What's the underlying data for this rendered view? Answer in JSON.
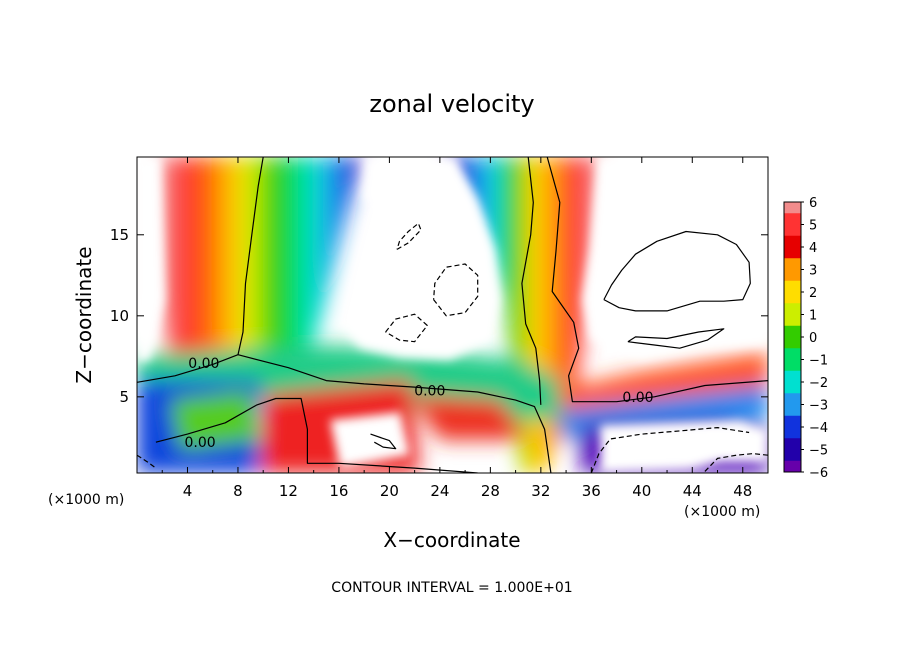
{
  "chart_data": {
    "type": "heatmap",
    "title": "zonal velocity",
    "xlabel": "X−coordinate",
    "ylabel": "Z−coordinate",
    "x_unit_left": "(×1000 m)",
    "x_unit_right": "(×1000 m)",
    "footer": "CONTOUR INTERVAL = 1.000E+01",
    "xlim": [
      0,
      50
    ],
    "ylim": [
      0.3,
      19.8
    ],
    "x_ticks": [
      4,
      8,
      12,
      16,
      20,
      24,
      28,
      32,
      36,
      40,
      44,
      48
    ],
    "x_tick_labels": [
      "4",
      "8",
      "12",
      "16",
      "20",
      "24",
      "28",
      "32",
      "36",
      "40",
      "44",
      "48"
    ],
    "y_ticks": [
      5,
      10,
      15
    ],
    "y_tick_labels": [
      "5",
      "10",
      "15"
    ],
    "colorbar": {
      "values": [
        6,
        5,
        4,
        3,
        2,
        1,
        0,
        -1,
        -2,
        -3,
        -4,
        -5,
        -6
      ],
      "labels": [
        "6",
        "5",
        "4",
        "3",
        "2",
        "1",
        "0",
        "−1",
        "−2",
        "−3",
        "−4",
        "−5",
        "−6"
      ],
      "colors": [
        "#f28c8c",
        "#ff3333",
        "#e60000",
        "#ff9900",
        "#ffdd00",
        "#ccee00",
        "#33cc00",
        "#00dd66",
        "#00e0d0",
        "#2299ee",
        "#1133dd",
        "#2200aa",
        "#6600aa"
      ]
    },
    "contour_labels": [
      {
        "text": "0.00",
        "x": 5.3,
        "z": 7.1
      },
      {
        "text": "0.00",
        "x": 23.2,
        "z": 5.4
      },
      {
        "text": "0.00",
        "x": 39.7,
        "z": 5.0
      },
      {
        "text": "0.00",
        "x": 5.0,
        "z": 2.2
      }
    ],
    "contours": [
      {
        "style": "solid",
        "points": [
          [
            0,
            5.9
          ],
          [
            3,
            6.3
          ],
          [
            6,
            7.0
          ],
          [
            8,
            7.6
          ],
          [
            8.4,
            9
          ],
          [
            8.6,
            12
          ],
          [
            9.1,
            15
          ],
          [
            9.6,
            18
          ],
          [
            10,
            19.8
          ]
        ]
      },
      {
        "style": "solid",
        "points": [
          [
            8,
            7.6
          ],
          [
            12,
            6.8
          ],
          [
            15,
            6.0
          ],
          [
            18,
            5.8
          ],
          [
            22,
            5.6
          ],
          [
            27,
            5.3
          ],
          [
            30,
            4.8
          ],
          [
            31.5,
            4.4
          ],
          [
            32.3,
            3
          ],
          [
            32.8,
            0.3
          ]
        ]
      },
      {
        "style": "solid",
        "points": [
          [
            31,
            19.8
          ],
          [
            31.4,
            17
          ],
          [
            31.2,
            15
          ],
          [
            30.5,
            12
          ],
          [
            30.8,
            9.5
          ],
          [
            31.6,
            8
          ],
          [
            31.9,
            6
          ],
          [
            32,
            4.5
          ]
        ]
      },
      {
        "style": "solid",
        "points": [
          [
            32.5,
            19.8
          ],
          [
            33.5,
            17
          ],
          [
            33.2,
            14
          ],
          [
            32.9,
            11.5
          ],
          [
            34.6,
            9.6
          ],
          [
            35,
            8
          ],
          [
            34.2,
            6.3
          ],
          [
            34.5,
            4.7
          ],
          [
            38,
            4.7
          ],
          [
            41,
            5.0
          ],
          [
            45,
            5.7
          ],
          [
            50,
            6.0
          ]
        ]
      },
      {
        "style": "solid",
        "points": [
          [
            1.5,
            2.2
          ],
          [
            4,
            2.7
          ],
          [
            7,
            3.4
          ],
          [
            9.5,
            4.5
          ],
          [
            11,
            4.9
          ],
          [
            13,
            4.9
          ],
          [
            13.5,
            3
          ],
          [
            13.5,
            0.9
          ],
          [
            16,
            0.9
          ],
          [
            22,
            0.6
          ],
          [
            27,
            0.3
          ]
        ]
      },
      {
        "style": "solid",
        "points": [
          [
            37,
            11
          ],
          [
            37.6,
            11.9
          ],
          [
            38.4,
            12.8
          ],
          [
            39.5,
            13.8
          ],
          [
            41.2,
            14.6
          ],
          [
            43.5,
            15.2
          ],
          [
            46,
            15.0
          ],
          [
            47.5,
            14.4
          ],
          [
            48.5,
            13.3
          ],
          [
            48.6,
            12.0
          ],
          [
            48.0,
            11.0
          ],
          [
            46.5,
            10.9
          ],
          [
            44.6,
            10.9
          ],
          [
            42.0,
            10.3
          ],
          [
            39.5,
            10.3
          ],
          [
            38.2,
            10.5
          ],
          [
            37,
            11
          ]
        ]
      },
      {
        "style": "solid",
        "points": [
          [
            38.9,
            8.4
          ],
          [
            41,
            8.2
          ],
          [
            43,
            8.0
          ],
          [
            45.2,
            8.5
          ],
          [
            46.5,
            9.2
          ],
          [
            44.5,
            9.0
          ],
          [
            42,
            8.6
          ],
          [
            39.5,
            8.7
          ],
          [
            38.9,
            8.4
          ]
        ]
      },
      {
        "style": "solid",
        "points": [
          [
            18.5,
            2.7
          ],
          [
            20,
            2.3
          ],
          [
            20.5,
            1.8
          ],
          [
            19.5,
            1.9
          ],
          [
            18.8,
            2.2
          ]
        ]
      },
      {
        "style": "dashed",
        "points": [
          [
            20.6,
            14.1
          ],
          [
            21.5,
            14.5
          ],
          [
            22.5,
            15.3
          ],
          [
            22.3,
            15.7
          ],
          [
            21.5,
            15.2
          ],
          [
            20.8,
            14.6
          ],
          [
            20.6,
            14.1
          ]
        ]
      },
      {
        "style": "dashed",
        "points": [
          [
            23.5,
            11.0
          ],
          [
            24.5,
            10.0
          ],
          [
            26.0,
            10.2
          ],
          [
            27.0,
            11.2
          ],
          [
            27.0,
            12.5
          ],
          [
            26.0,
            13.2
          ],
          [
            24.5,
            13.0
          ],
          [
            23.6,
            12.0
          ],
          [
            23.5,
            11.0
          ]
        ]
      },
      {
        "style": "dashed",
        "points": [
          [
            19.7,
            9.0
          ],
          [
            20.5,
            9.8
          ],
          [
            22.0,
            10.1
          ],
          [
            23.0,
            9.4
          ],
          [
            22.0,
            8.4
          ],
          [
            20.8,
            8.5
          ],
          [
            19.7,
            9.0
          ]
        ]
      },
      {
        "style": "dashed",
        "points": [
          [
            36,
            0.3
          ],
          [
            36.6,
            1.5
          ],
          [
            37.5,
            2.4
          ],
          [
            40,
            2.7
          ],
          [
            43,
            2.9
          ],
          [
            46,
            3.1
          ],
          [
            48.5,
            2.8
          ]
        ]
      },
      {
        "style": "dashed",
        "points": [
          [
            45,
            0.4
          ],
          [
            46,
            1.2
          ],
          [
            47.5,
            1.4
          ],
          [
            48.8,
            1.5
          ],
          [
            50,
            1.4
          ]
        ]
      },
      {
        "style": "dashed",
        "points": [
          [
            0,
            1.4
          ],
          [
            0.8,
            1.0
          ],
          [
            1.5,
            0.6
          ]
        ]
      }
    ]
  }
}
